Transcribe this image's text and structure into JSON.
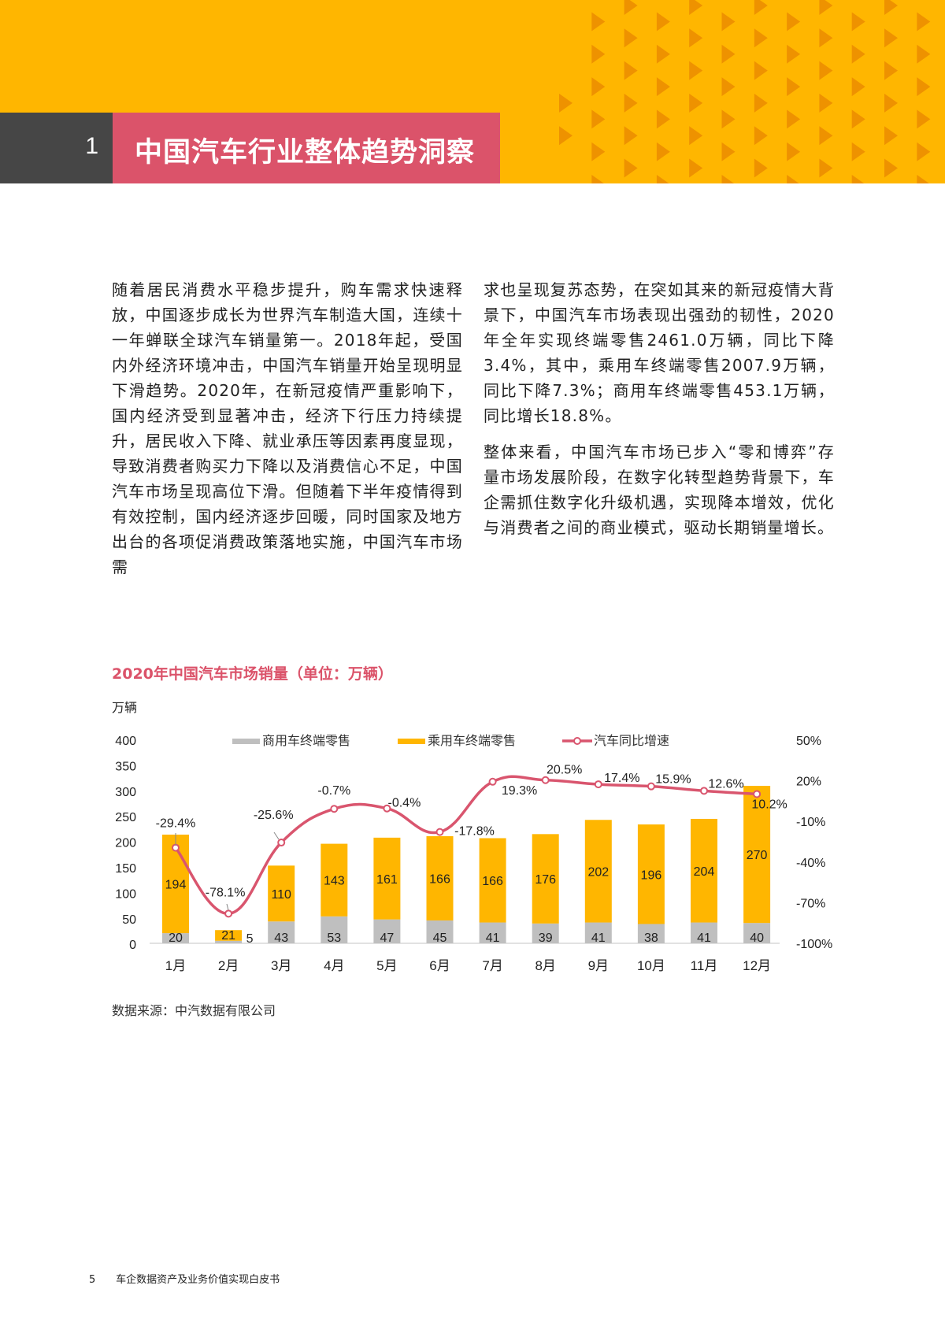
{
  "header": {
    "section_number": "1",
    "section_title": "中国汽车行业整体趋势洞察",
    "band_color": "#FFB600",
    "pattern_color": "#EE9200",
    "number_box_color": "#464646",
    "title_box_color": "#DB536A"
  },
  "body": {
    "left_paragraph": "随着居民消费水平稳步提升，购车需求快速释放，中国逐步成长为世界汽车制造大国，连续十一年蝉联全球汽车销量第一。2018年起，受国内外经济环境冲击，中国汽车销量开始呈现明显下滑趋势。2020年，在新冠疫情严重影响下，国内经济受到显著冲击，经济下行压力持续提升，居民收入下降、就业承压等因素再度显现，导致消费者购买力下降以及消费信心不足，中国汽车市场呈现高位下滑。但随着下半年疫情得到有效控制，国内经济逐步回暖，同时国家及地方出台的各项促消费政策落地实施，中国汽车市场需",
    "right_paragraph_1": "求也呈现复苏态势，在突如其来的新冠疫情大背景下，中国汽车市场表现出强劲的韧性，2020年全年实现终端零售2461.0万辆，同比下降3.4%，其中，乘用车终端零售2007.9万辆，同比下降7.3%；商用车终端零售453.1万辆，同比增长18.8%。",
    "right_paragraph_2": "整体来看，中国汽车市场已步入“零和博弈”存量市场发展阶段，在数字化转型趋势背景下，车企需抓住数字化升级机遇，实现降本增效，优化与消费者之间的商业模式，驱动长期销量增长。"
  },
  "chart_data": {
    "type": "bar",
    "subtype": "stacked bar + line (dual axis)",
    "title": "2020年中国汽车市场销量（单位：万辆）",
    "ylabel": "万辆",
    "xlabel": "",
    "categories": [
      "1月",
      "2月",
      "3月",
      "4月",
      "5月",
      "6月",
      "7月",
      "8月",
      "9月",
      "10月",
      "11月",
      "12月"
    ],
    "series": [
      {
        "name": "商用车终端零售",
        "type": "bar",
        "stack": "total",
        "axis": "left",
        "color": "#BFBFBF",
        "values": [
          20,
          5,
          43,
          53,
          47,
          45,
          41,
          39,
          41,
          38,
          41,
          40
        ]
      },
      {
        "name": "乘用车终端零售",
        "type": "bar",
        "stack": "total",
        "axis": "left",
        "color": "#FFB600",
        "values": [
          194,
          21,
          110,
          143,
          161,
          166,
          166,
          176,
          202,
          196,
          204,
          270
        ]
      },
      {
        "name": "汽车同比增速",
        "type": "line",
        "axis": "right",
        "color": "#D9556E",
        "unit": "%",
        "values": [
          -29.4,
          -78.1,
          -25.6,
          -0.7,
          -0.4,
          -17.8,
          19.3,
          20.5,
          17.4,
          15.9,
          12.6,
          10.2
        ]
      }
    ],
    "left_axis": {
      "ylim": [
        0,
        400
      ],
      "ticks": [
        "400",
        "350",
        "300",
        "250",
        "200",
        "150",
        "100",
        "50",
        "0"
      ]
    },
    "right_axis": {
      "ylim": [
        -100,
        50
      ],
      "ticks": [
        "50%",
        "20%",
        "-10%",
        "-40%",
        "-70%",
        "-100%"
      ]
    },
    "line_labels": [
      "-29.4%",
      "-78.1%",
      "-25.6%",
      "-0.7%",
      "-0.4%",
      "-17.8%",
      "19.3%",
      "20.5%",
      "17.4%",
      "15.9%",
      "12.6%",
      "10.2%"
    ],
    "grid": false,
    "legend_position": "top"
  },
  "source_text": "数据来源：中汽数据有限公司",
  "footer": {
    "page_number": "5",
    "document_title": "车企数据资产及业务价值实现白皮书"
  }
}
